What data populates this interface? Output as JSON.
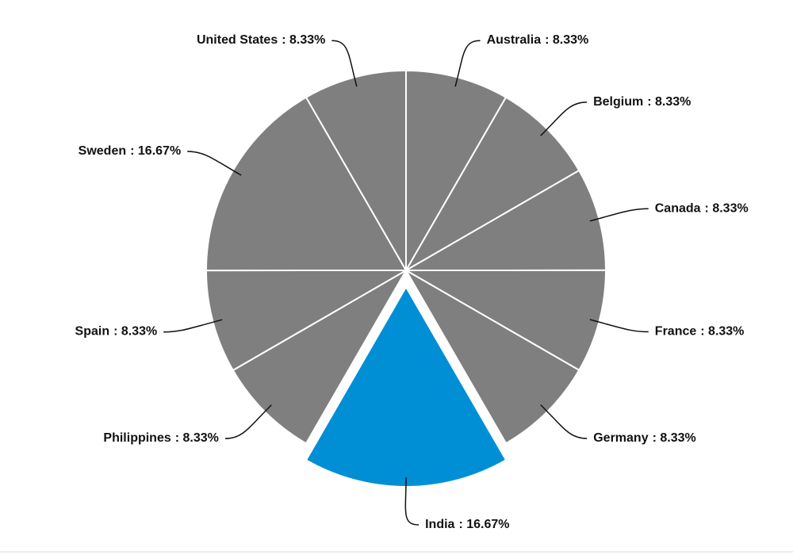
{
  "chart_data": {
    "type": "pie",
    "categories": [
      "Australia",
      "Belgium",
      "Canada",
      "France",
      "Germany",
      "India",
      "Philippines",
      "Spain",
      "Sweden",
      "United States"
    ],
    "values": [
      8.33,
      8.33,
      8.33,
      8.33,
      8.33,
      16.67,
      8.33,
      8.33,
      16.67,
      8.33
    ],
    "value_labels": [
      ": 8.33%",
      ": 8.33%",
      ": 8.33%",
      ": 8.33%",
      ": 8.33%",
      ": 16.67%",
      ": 8.33%",
      ": 8.33%",
      ": 16.67%",
      ": 8.33%"
    ],
    "colors": [
      "#7f7f7f",
      "#7f7f7f",
      "#7f7f7f",
      "#7f7f7f",
      "#7f7f7f",
      "#008fd5",
      "#7f7f7f",
      "#7f7f7f",
      "#7f7f7f",
      "#7f7f7f"
    ],
    "explode": [
      false,
      false,
      false,
      false,
      false,
      true,
      false,
      false,
      false,
      false
    ],
    "start_angle": 0,
    "direction": "clockwise"
  }
}
